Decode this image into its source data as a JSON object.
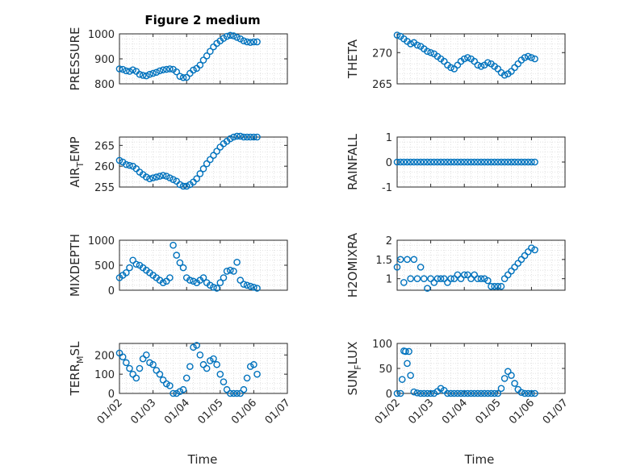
{
  "figure": {
    "title": "Figure 2 medium",
    "xlabel": "Time"
  },
  "colors": {
    "marker": "#0072BD",
    "axis": "#262626",
    "grid": "#dcdcdc"
  },
  "chart_data": [
    {
      "type": "scatter",
      "ylabel": "PRESSURE",
      "yticks": [
        "800",
        "900",
        "1000"
      ],
      "ylim": [
        800,
        1000
      ],
      "xlim": [
        0,
        5
      ],
      "xticks": [],
      "grid": true,
      "series": [
        {
          "x": [
            0.0,
            0.1,
            0.2,
            0.3,
            0.4,
            0.5,
            0.6,
            0.7,
            0.8,
            0.9,
            1.0,
            1.1,
            1.2,
            1.3,
            1.4,
            1.5,
            1.6,
            1.7,
            1.8,
            1.9,
            2.0,
            2.1,
            2.2,
            2.3,
            2.4,
            2.5,
            2.6,
            2.7,
            2.8,
            2.9,
            3.0,
            3.1,
            3.2,
            3.3,
            3.4,
            3.5,
            3.6,
            3.7,
            3.8,
            3.9,
            4.0,
            4.1
          ],
          "y": [
            860,
            858,
            852,
            850,
            856,
            850,
            838,
            834,
            832,
            838,
            842,
            846,
            852,
            856,
            858,
            860,
            858,
            848,
            830,
            825,
            826,
            842,
            855,
            862,
            875,
            895,
            912,
            930,
            948,
            962,
            972,
            982,
            990,
            994,
            992,
            986,
            980,
            972,
            968,
            966,
            968,
            968
          ]
        }
      ]
    },
    {
      "type": "scatter",
      "ylabel": "THETA",
      "yticks": [
        "265",
        "270"
      ],
      "ylim": [
        265,
        273
      ],
      "xlim": [
        0,
        5
      ],
      "xticks": [],
      "grid": true,
      "series": [
        {
          "x": [
            0.0,
            0.1,
            0.2,
            0.3,
            0.4,
            0.5,
            0.6,
            0.7,
            0.8,
            0.9,
            1.0,
            1.1,
            1.2,
            1.3,
            1.4,
            1.5,
            1.6,
            1.7,
            1.8,
            1.9,
            2.0,
            2.1,
            2.2,
            2.3,
            2.4,
            2.5,
            2.6,
            2.7,
            2.8,
            2.9,
            3.0,
            3.1,
            3.2,
            3.3,
            3.4,
            3.5,
            3.6,
            3.7,
            3.8,
            3.9,
            4.0,
            4.1
          ],
          "y": [
            272.8,
            272.6,
            272.2,
            271.8,
            271.4,
            271.6,
            271.2,
            271.0,
            270.6,
            270.2,
            270.0,
            269.8,
            269.4,
            269.0,
            268.6,
            268.0,
            267.6,
            267.4,
            268.0,
            268.6,
            269.0,
            269.2,
            269.0,
            268.6,
            268.0,
            267.8,
            268.0,
            268.4,
            268.2,
            267.8,
            267.4,
            266.8,
            266.4,
            266.6,
            267.0,
            267.6,
            268.2,
            268.8,
            269.2,
            269.4,
            269.2,
            269.0
          ]
        }
      ]
    },
    {
      "type": "scatter",
      "ylabel": "AIR_TEMP",
      "ylabel_main": "AIR",
      "ylabel_sub": "T",
      "ylabel_rest": "EMP",
      "yticks": [
        "255",
        "260",
        "265"
      ],
      "ylim": [
        255,
        267
      ],
      "xlim": [
        0,
        5
      ],
      "xticks": [],
      "grid": true,
      "series": [
        {
          "x": [
            0.0,
            0.1,
            0.2,
            0.3,
            0.4,
            0.5,
            0.6,
            0.7,
            0.8,
            0.9,
            1.0,
            1.1,
            1.2,
            1.3,
            1.4,
            1.5,
            1.6,
            1.7,
            1.8,
            1.9,
            2.0,
            2.1,
            2.2,
            2.3,
            2.4,
            2.5,
            2.6,
            2.7,
            2.8,
            2.9,
            3.0,
            3.1,
            3.2,
            3.3,
            3.4,
            3.5,
            3.6,
            3.7,
            3.8,
            3.9,
            4.0,
            4.1
          ],
          "y": [
            261.4,
            261.0,
            260.4,
            260.2,
            260.0,
            259.4,
            258.6,
            258.0,
            257.4,
            257.0,
            257.2,
            257.4,
            257.6,
            257.8,
            257.6,
            257.2,
            256.8,
            256.4,
            255.6,
            255.2,
            255.2,
            255.6,
            256.2,
            257.0,
            258.2,
            259.4,
            260.6,
            261.6,
            262.6,
            263.6,
            264.6,
            265.4,
            266.0,
            266.6,
            267.0,
            267.2,
            267.2,
            267.0,
            267.0,
            267.0,
            267.0,
            267.0
          ]
        }
      ]
    },
    {
      "type": "scatter",
      "ylabel": "RAINFALL",
      "yticks": [
        "-1",
        "0",
        "1"
      ],
      "ylim": [
        -1,
        1
      ],
      "xlim": [
        0,
        5
      ],
      "xticks": [],
      "grid": true,
      "series": [
        {
          "x": [
            0.0,
            0.1,
            0.2,
            0.3,
            0.4,
            0.5,
            0.6,
            0.7,
            0.8,
            0.9,
            1.0,
            1.1,
            1.2,
            1.3,
            1.4,
            1.5,
            1.6,
            1.7,
            1.8,
            1.9,
            2.0,
            2.1,
            2.2,
            2.3,
            2.4,
            2.5,
            2.6,
            2.7,
            2.8,
            2.9,
            3.0,
            3.1,
            3.2,
            3.3,
            3.4,
            3.5,
            3.6,
            3.7,
            3.8,
            3.9,
            4.0,
            4.1
          ],
          "y": [
            0,
            0,
            0,
            0,
            0,
            0,
            0,
            0,
            0,
            0,
            0,
            0,
            0,
            0,
            0,
            0,
            0,
            0,
            0,
            0,
            0,
            0,
            0,
            0,
            0,
            0,
            0,
            0,
            0,
            0,
            0,
            0,
            0,
            0,
            0,
            0,
            0,
            0,
            0,
            0,
            0,
            0
          ]
        }
      ]
    },
    {
      "type": "scatter",
      "ylabel": "MIXDEPTH",
      "yticks": [
        "0",
        "500",
        "1000"
      ],
      "ylim": [
        0,
        1000
      ],
      "xlim": [
        0,
        5
      ],
      "xticks": [],
      "grid": true,
      "series": [
        {
          "x": [
            0.0,
            0.1,
            0.2,
            0.3,
            0.4,
            0.5,
            0.6,
            0.7,
            0.8,
            0.9,
            1.0,
            1.1,
            1.2,
            1.3,
            1.4,
            1.5,
            1.6,
            1.7,
            1.8,
            1.9,
            2.0,
            2.1,
            2.2,
            2.3,
            2.4,
            2.5,
            2.6,
            2.7,
            2.8,
            2.9,
            3.0,
            3.1,
            3.2,
            3.3,
            3.4,
            3.5,
            3.6,
            3.7,
            3.8,
            3.9,
            4.0,
            4.1
          ],
          "y": [
            250,
            300,
            350,
            450,
            600,
            520,
            500,
            450,
            400,
            350,
            300,
            250,
            200,
            150,
            180,
            250,
            900,
            700,
            550,
            450,
            250,
            200,
            180,
            150,
            200,
            250,
            150,
            100,
            60,
            40,
            150,
            250,
            380,
            400,
            380,
            560,
            200,
            120,
            100,
            80,
            60,
            40
          ]
        }
      ]
    },
    {
      "type": "scatter",
      "ylabel": "H2OMIXRA",
      "yticks": [
        "1",
        "1.5",
        "2"
      ],
      "ylim": [
        0.7,
        2
      ],
      "xlim": [
        0,
        5
      ],
      "xticks": [],
      "grid": true,
      "series": [
        {
          "x": [
            0.0,
            0.1,
            0.2,
            0.3,
            0.4,
            0.5,
            0.6,
            0.7,
            0.8,
            0.9,
            1.0,
            1.1,
            1.2,
            1.3,
            1.4,
            1.5,
            1.6,
            1.7,
            1.8,
            1.9,
            2.0,
            2.1,
            2.2,
            2.3,
            2.4,
            2.5,
            2.6,
            2.7,
            2.8,
            2.9,
            3.0,
            3.1,
            3.2,
            3.3,
            3.4,
            3.5,
            3.6,
            3.7,
            3.8,
            3.9,
            4.0,
            4.1
          ],
          "y": [
            1.3,
            1.5,
            0.9,
            1.5,
            1.0,
            1.5,
            1.0,
            1.3,
            1.0,
            0.75,
            1.0,
            0.9,
            1.0,
            1.0,
            1.0,
            0.9,
            1.0,
            1.0,
            1.1,
            1.0,
            1.1,
            1.1,
            1.0,
            1.1,
            1.0,
            1.0,
            1.0,
            0.95,
            0.8,
            0.8,
            0.8,
            0.8,
            1.0,
            1.1,
            1.2,
            1.3,
            1.4,
            1.5,
            1.6,
            1.7,
            1.8,
            1.75
          ]
        }
      ]
    },
    {
      "type": "scatter",
      "ylabel": "TERR_MSL",
      "ylabel_main": "TERR",
      "ylabel_sub": "M",
      "ylabel_rest": "SL",
      "yticks": [
        "0",
        "100",
        "200"
      ],
      "ylim": [
        0,
        260
      ],
      "xlim": [
        0,
        5
      ],
      "xticks": [
        "01/02",
        "01/03",
        "01/04",
        "01/05",
        "01/06",
        "01/07"
      ],
      "grid": true,
      "series": [
        {
          "x": [
            0.0,
            0.1,
            0.2,
            0.3,
            0.4,
            0.5,
            0.6,
            0.7,
            0.8,
            0.9,
            1.0,
            1.1,
            1.2,
            1.3,
            1.4,
            1.5,
            1.6,
            1.7,
            1.8,
            1.9,
            2.0,
            2.1,
            2.2,
            2.3,
            2.4,
            2.5,
            2.6,
            2.7,
            2.8,
            2.9,
            3.0,
            3.1,
            3.2,
            3.3,
            3.4,
            3.5,
            3.6,
            3.7,
            3.8,
            3.9,
            4.0,
            4.1
          ],
          "y": [
            210,
            190,
            160,
            130,
            100,
            80,
            130,
            180,
            200,
            160,
            150,
            120,
            100,
            70,
            50,
            40,
            0,
            0,
            10,
            20,
            80,
            140,
            240,
            250,
            200,
            150,
            130,
            170,
            180,
            150,
            100,
            60,
            20,
            0,
            0,
            0,
            0,
            20,
            80,
            140,
            150,
            100
          ]
        }
      ]
    },
    {
      "type": "scatter",
      "ylabel": "SUN_FLUX",
      "ylabel_main": "SUN",
      "ylabel_sub": "F",
      "ylabel_rest": "LUX",
      "yticks": [
        "0",
        "50",
        "100"
      ],
      "ylim": [
        0,
        100
      ],
      "xlim": [
        0,
        5
      ],
      "xticks": [
        "01/02",
        "01/03",
        "01/04",
        "01/05",
        "01/06",
        "01/07"
      ],
      "grid": true,
      "series": [
        {
          "x": [
            0.0,
            0.1,
            0.15,
            0.2,
            0.25,
            0.3,
            0.35,
            0.4,
            0.5,
            0.6,
            0.7,
            0.8,
            0.9,
            1.0,
            1.1,
            1.2,
            1.3,
            1.4,
            1.5,
            1.6,
            1.7,
            1.8,
            1.9,
            2.0,
            2.1,
            2.2,
            2.3,
            2.4,
            2.5,
            2.6,
            2.7,
            2.8,
            2.9,
            3.0,
            3.1,
            3.2,
            3.3,
            3.4,
            3.5,
            3.6,
            3.7,
            3.8,
            3.9,
            4.0,
            4.1
          ],
          "y": [
            0,
            0,
            28,
            85,
            84,
            60,
            84,
            36,
            3,
            1,
            0,
            0,
            0,
            0,
            0,
            4,
            10,
            6,
            0,
            0,
            0,
            0,
            0,
            0,
            0,
            0,
            0,
            0,
            0,
            0,
            0,
            0,
            0,
            0,
            10,
            30,
            44,
            36,
            20,
            8,
            2,
            0,
            0,
            0,
            0
          ]
        }
      ]
    }
  ]
}
